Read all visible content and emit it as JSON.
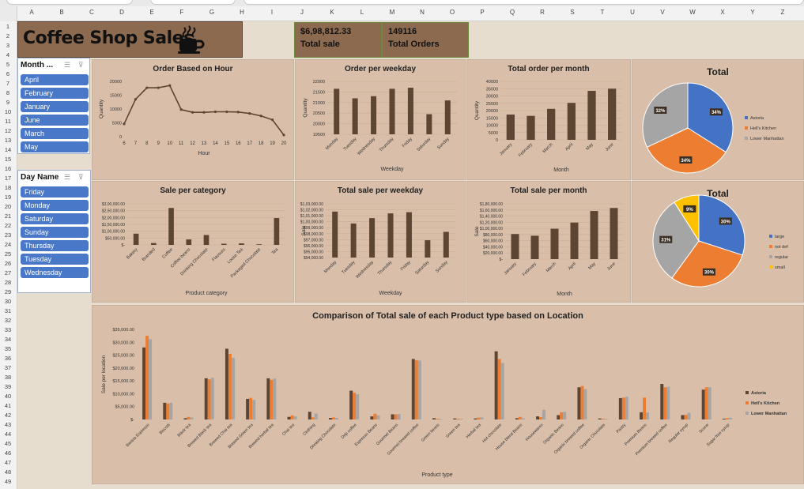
{
  "dashboard": {
    "title": "Coffee Shop Sales",
    "kpis": [
      {
        "value": "$6,98,812.33",
        "label": "Total sale"
      },
      {
        "value": "149116",
        "label": "Total Orders"
      }
    ]
  },
  "columns": [
    "A",
    "B",
    "C",
    "D",
    "E",
    "F",
    "G",
    "H",
    "I",
    "J",
    "K",
    "L",
    "M",
    "N",
    "O",
    "P",
    "Q",
    "R",
    "S",
    "T",
    "U",
    "V",
    "W",
    "X",
    "Y",
    "Z"
  ],
  "rows": [
    "1",
    "2",
    "3",
    "4",
    "5",
    "6",
    "7",
    "8",
    "9",
    "10",
    "11",
    "12",
    "13",
    "14",
    "15",
    "16",
    "17",
    "18",
    "19",
    "20",
    "21",
    "22",
    "23",
    "24",
    "25",
    "26",
    "27",
    "28",
    "29",
    "30",
    "31",
    "32",
    "33",
    "34",
    "35",
    "36",
    "37",
    "38",
    "39",
    "40",
    "41",
    "42",
    "43",
    "44",
    "45",
    "46",
    "47",
    "48",
    "49"
  ],
  "slicers": {
    "month": {
      "header": "Month ...",
      "items": [
        "April",
        "February",
        "January",
        "June",
        "March",
        "May"
      ]
    },
    "day": {
      "header": "Day Name",
      "items": [
        "Friday",
        "Monday",
        "Saturday",
        "Sunday",
        "Thursday",
        "Tuesday",
        "Wednesday"
      ]
    }
  },
  "colors": {
    "bar": "#5c4633",
    "blue": "#4472c4",
    "orange": "#ed7d31",
    "gray": "#a5a5a5",
    "yellow": "#ffc000",
    "panel": "#d9bfa9"
  },
  "chart_data": [
    {
      "id": "hour",
      "type": "line",
      "title": "Order Based on Hour",
      "xlabel": "Hour",
      "ylabel": "Quantity",
      "x": [
        "6",
        "7",
        "8",
        "9",
        "10",
        "11",
        "12",
        "13",
        "14",
        "15",
        "16",
        "17",
        "18",
        "19",
        "20"
      ],
      "values": [
        4600,
        13500,
        17700,
        17700,
        18500,
        9800,
        8800,
        8800,
        9000,
        9000,
        8900,
        8400,
        7500,
        6100,
        600
      ],
      "yticks": [
        "0",
        "5000",
        "10000",
        "15000",
        "20000"
      ],
      "ylim": [
        0,
        20000
      ]
    },
    {
      "id": "weekday",
      "type": "bar",
      "title": "Order per weekday",
      "xlabel": "Weekday",
      "ylabel": "Quantity",
      "categories": [
        "Monday",
        "Tuesday",
        "Wednesday",
        "Thursday",
        "Friday",
        "Saturday",
        "Sunday"
      ],
      "values": [
        21650,
        21200,
        21300,
        21650,
        21700,
        20450,
        21100
      ],
      "yticks": [
        "19500",
        "20000",
        "20500",
        "21000",
        "21500",
        "22000"
      ],
      "ylim": [
        19500,
        22000
      ]
    },
    {
      "id": "month",
      "type": "bar",
      "title": "Total order per month",
      "xlabel": "Month",
      "ylabel": "Quantity",
      "categories": [
        "January",
        "February",
        "March",
        "April",
        "May",
        "June"
      ],
      "values": [
        17300,
        16400,
        21200,
        25300,
        33500,
        35000
      ],
      "yticks": [
        "0",
        "5000",
        "10000",
        "15000",
        "20000",
        "25000",
        "30000",
        "35000",
        "40000"
      ],
      "ylim": [
        0,
        40000
      ]
    },
    {
      "id": "pie_location",
      "type": "pie",
      "title": "Total",
      "labels": [
        "Astoria",
        "Hell's Kitchen",
        "Lower Manhattan"
      ],
      "values": [
        34,
        34,
        32
      ],
      "value_labels": [
        "34%",
        "34%",
        "32%"
      ],
      "legend": "right"
    },
    {
      "id": "category",
      "type": "bar",
      "title": "Sale per category",
      "xlabel": "Product category",
      "ylabel": "",
      "categories": [
        "Bakery",
        "Branded",
        "Coffee",
        "Coffee beans",
        "Drinking Chocolate",
        "Flavours",
        "Loose Tea",
        "Packaged Chocolate",
        "Tea"
      ],
      "values": [
        82000,
        13500,
        270000,
        40000,
        72000,
        8500,
        11000,
        4400,
        196000
      ],
      "yticks": [
        "$-",
        "$50,000.00",
        "$1,00,000.00",
        "$1,50,000.00",
        "$2,00,000.00",
        "$2,50,000.00",
        "$3,00,000.00"
      ],
      "ylim": [
        0,
        300000
      ]
    },
    {
      "id": "sale_weekday",
      "type": "bar",
      "title": "Total sale per weekday",
      "xlabel": "Weekday",
      "ylabel": "Sale",
      "categories": [
        "Monday",
        "Tuesday",
        "Wednesday",
        "Thursday",
        "Friday",
        "Saturday",
        "Sunday"
      ],
      "values": [
        101700,
        99700,
        100600,
        101400,
        101600,
        96900,
        98300
      ],
      "yticks": [
        "$94,000.00",
        "$95,000.00",
        "$96,000.00",
        "$97,000.00",
        "$98,000.00",
        "$99,000.00",
        "$1,00,000.00",
        "$1,01,000.00",
        "$1,02,000.00",
        "$1,03,000.00"
      ],
      "ylim": [
        94000,
        103000
      ]
    },
    {
      "id": "sale_month",
      "type": "bar",
      "title": "Total sale per month",
      "xlabel": "Month",
      "ylabel": "Sale",
      "categories": [
        "January",
        "February",
        "March",
        "April",
        "May",
        "June"
      ],
      "values": [
        81700,
        76100,
        98800,
        118900,
        156700,
        166500
      ],
      "yticks": [
        "$-",
        "$20,000.00",
        "$40,000.00",
        "$60,000.00",
        "$80,000.00",
        "$1,00,000.00",
        "$1,20,000.00",
        "$1,40,000.00",
        "$1,60,000.00",
        "$1,80,000.00"
      ],
      "ylim": [
        0,
        180000
      ]
    },
    {
      "id": "pie_size",
      "type": "pie",
      "title": "Total",
      "labels": [
        "large",
        "not def",
        "regular",
        "small"
      ],
      "values": [
        30,
        30,
        31,
        9
      ],
      "value_labels": [
        "30%",
        "30%",
        "31%",
        "9%"
      ],
      "legend": "right"
    },
    {
      "id": "product_type",
      "type": "bar",
      "title": "Comparison of Total sale of each Product type based on Location",
      "xlabel": "Product type",
      "ylabel": "Sale per location",
      "categories": [
        "Barista Espresso",
        "Biscotti",
        "Black tea",
        "Brewed Black tea",
        "Brewed Chai tea",
        "Brewed Green tea",
        "Brewed herbal tea",
        "Chai tea",
        "Clothing",
        "Drinking Chocolate",
        "Drip coffee",
        "Espresso Beans",
        "Gourmet Beans",
        "Gourmet brewed coffee",
        "Green beans",
        "Green tea",
        "Herbal tea",
        "Hot chocolate",
        "House blend Beans",
        "Housewares",
        "Organic Beans",
        "Organic brewed coffee",
        "Organic Chocolate",
        "Pastry",
        "Premium Beans",
        "Premium brewed coffee",
        "Regular syrup",
        "Scone",
        "Sugar free syrup"
      ],
      "series": [
        {
          "name": "Astoria",
          "values": [
            28000,
            6500,
            500,
            16000,
            27500,
            8000,
            16000,
            1000,
            3000,
            600,
            11200,
            1200,
            2000,
            23500,
            500,
            400,
            400,
            26500,
            500,
            1200,
            1700,
            12500,
            400,
            8300,
            2800,
            13800,
            1700,
            11600,
            300
          ]
        },
        {
          "name": "Hell's Kitchen",
          "values": [
            32500,
            6200,
            1000,
            15600,
            25500,
            8400,
            15400,
            1600,
            800,
            800,
            10400,
            2200,
            2000,
            23000,
            300,
            300,
            700,
            23500,
            1000,
            900,
            2800,
            13000,
            300,
            8500,
            8500,
            12500,
            1800,
            12500,
            500
          ]
        },
        {
          "name": "Lower Manhattan",
          "values": [
            31200,
            6500,
            800,
            16200,
            24000,
            7600,
            15900,
            1200,
            2300,
            600,
            9800,
            1600,
            2100,
            22900,
            300,
            300,
            800,
            22000,
            500,
            3800,
            3000,
            11800,
            300,
            8800,
            2700,
            12700,
            2600,
            12500,
            700
          ]
        }
      ],
      "yticks": [
        "$-",
        "$5,000.00",
        "$10,000.00",
        "$15,000.00",
        "$20,000.00",
        "$25,000.00",
        "$30,000.00",
        "$35,000.00"
      ],
      "ylim": [
        0,
        35000
      ],
      "legend": "right"
    }
  ]
}
